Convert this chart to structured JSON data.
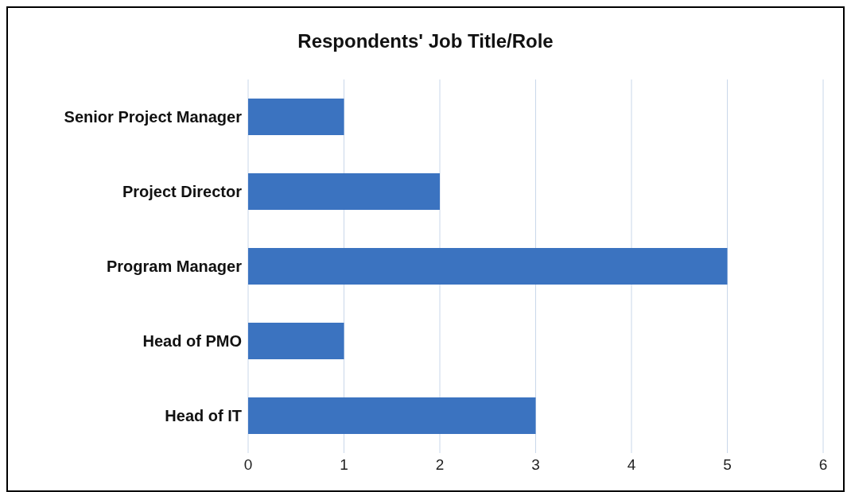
{
  "chart_data": {
    "type": "bar",
    "orientation": "horizontal",
    "title": "Respondents' Job Title/Role",
    "categories": [
      "Senior Project Manager",
      "Project Director",
      "Program Manager",
      "Head of PMO",
      "Head of IT"
    ],
    "values": [
      1,
      2,
      5,
      1,
      3
    ],
    "color": "#3b73c0",
    "xlim": [
      0,
      6
    ],
    "xticks": [
      0,
      1,
      2,
      3,
      4,
      5,
      6
    ],
    "grid": "x",
    "legend": false
  }
}
